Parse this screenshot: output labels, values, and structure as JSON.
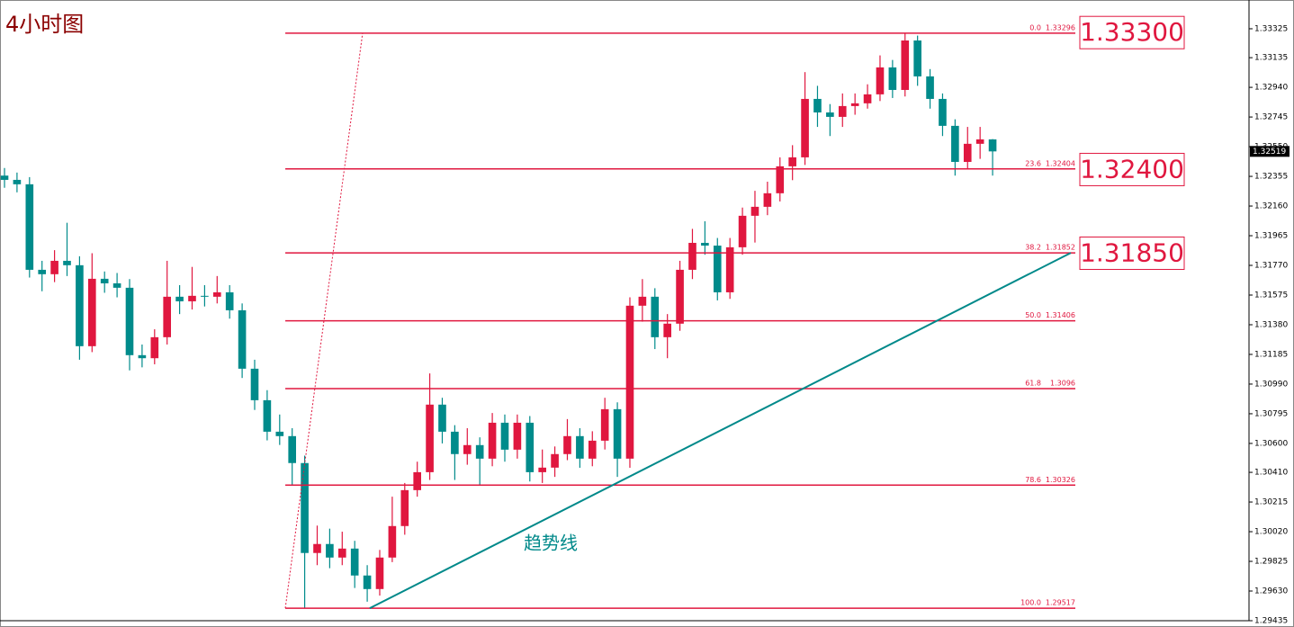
{
  "chart_data": {
    "type": "candlestick",
    "title": "4小时图",
    "xlim": [
      -0.36,
      99.5
    ],
    "ylim": [
      1.29435,
      1.33514
    ],
    "yticks": [
      1.33325,
      1.33135,
      {
        "value": 1.3294,
        "label": "1.32940"
      },
      1.32745,
      {
        "value": 1.3255,
        "label": "1.32550"
      },
      1.32355,
      {
        "value": 1.3216,
        "label": "1.32160"
      },
      1.31965,
      {
        "value": 1.3177,
        "label": "1.31770"
      },
      1.31575,
      {
        "value": 1.3138,
        "label": "1.31380"
      },
      1.31185,
      {
        "value": 1.3099,
        "label": "1.30990"
      },
      1.30795,
      {
        "value": 1.306,
        "label": "1.30600"
      },
      {
        "value": 1.3041,
        "label": "1.30410"
      },
      1.30215,
      {
        "value": 1.3002,
        "label": "1.30020"
      },
      1.29825,
      {
        "value": 1.2963,
        "label": "1.29630"
      },
      1.29435
    ],
    "up_color": "#e0173f",
    "down_color": "#008b8b",
    "open": [
      1.3236,
      1.32332,
      1.32303,
      1.31741,
      1.31712,
      1.318,
      1.31771,
      1.31239,
      1.31682,
      1.31652,
      1.31623,
      1.3118,
      1.3116,
      1.31298,
      1.31564,
      1.31534,
      1.3157,
      1.31564,
      1.31593,
      1.31475,
      1.31091,
      1.30884,
      1.30677,
      1.30648,
      1.30471,
      1.2988,
      1.29939,
      1.2985,
      1.29909,
      1.29732,
      1.29643,
      1.2985,
      1.30057,
      1.30293,
      1.30411,
      1.30855,
      1.30677,
      1.3053,
      1.30589,
      1.305,
      1.30736,
      1.30559,
      1.30736,
      1.30411,
      1.30441,
      1.3053,
      1.30648,
      1.305,
      1.30618,
      1.30825,
      1.305,
      1.31505,
      1.31564,
      1.31298,
      1.31387,
      1.31741,
      1.31918,
      1.319,
      1.31593,
      1.31889,
      1.32096,
      1.32155,
      1.32244,
      1.32421,
      1.3248,
      1.32864,
      1.32775,
      1.32746,
      1.32817,
      1.32835,
      1.32894,
      1.33071,
      1.32923,
      1.33248,
      1.33012,
      1.32864,
      1.32687,
      1.3245,
      1.32569,
      1.32598
    ],
    "high": [
      1.3241,
      1.3238,
      1.3235,
      1.318,
      1.3187,
      1.3205,
      1.3183,
      1.3185,
      1.3173,
      1.3172,
      1.3168,
      1.3125,
      1.3135,
      1.318,
      1.3164,
      1.3176,
      1.3164,
      1.317,
      1.3164,
      1.3152,
      1.3115,
      1.3095,
      1.3079,
      1.307,
      1.3052,
      1.3006,
      1.3004,
      1.3002,
      1.2996,
      1.298,
      1.299,
      1.3025,
      1.3034,
      1.3048,
      1.3106,
      1.309,
      1.3072,
      1.307,
      1.3064,
      1.308,
      1.3079,
      1.3079,
      1.3078,
      1.3056,
      1.3058,
      1.3076,
      1.307,
      1.3068,
      1.309,
      1.3087,
      1.3156,
      1.3168,
      1.3162,
      1.3145,
      1.318,
      1.3201,
      1.3206,
      1.3195,
      1.3195,
      1.3215,
      1.3226,
      1.3232,
      1.3248,
      1.3256,
      1.3304,
      1.3295,
      1.3283,
      1.329,
      1.329,
      1.3296,
      1.3315,
      1.3312,
      1.33296,
      1.3328,
      1.3306,
      1.329,
      1.3273,
      1.3268,
      1.3268,
      1.326
    ],
    "low": [
      1.3228,
      1.3225,
      1.3169,
      1.316,
      1.3166,
      1.317,
      1.3115,
      1.312,
      1.3159,
      1.3156,
      1.3108,
      1.311,
      1.3112,
      1.3125,
      1.3145,
      1.3148,
      1.315,
      1.3152,
      1.3142,
      1.3103,
      1.3082,
      1.3062,
      1.3059,
      1.3033,
      1.29517,
      1.298,
      1.2978,
      1.298,
      1.2965,
      1.2956,
      1.296,
      1.2982,
      1.3,
      1.3025,
      1.3036,
      1.306,
      1.3036,
      1.3046,
      1.3033,
      1.3045,
      1.3048,
      1.305,
      1.3035,
      1.3034,
      1.3038,
      1.3049,
      1.3044,
      1.3045,
      1.3056,
      1.3038,
      1.3044,
      1.314,
      1.3122,
      1.3116,
      1.3134,
      1.3168,
      1.3184,
      1.3154,
      1.3155,
      1.3184,
      1.3192,
      1.321,
      1.3219,
      1.3233,
      1.3243,
      1.3268,
      1.3262,
      1.3268,
      1.3276,
      1.328,
      1.3285,
      1.3287,
      1.3288,
      1.3295,
      1.328,
      1.3262,
      1.3236,
      1.324,
      1.3247,
      1.3236
    ],
    "close": [
      1.32332,
      1.32303,
      1.31741,
      1.31712,
      1.318,
      1.31771,
      1.31239,
      1.31682,
      1.31652,
      1.31623,
      1.3118,
      1.3116,
      1.31298,
      1.31564,
      1.31534,
      1.3157,
      1.31564,
      1.31593,
      1.31475,
      1.31091,
      1.30884,
      1.30677,
      1.30648,
      1.30471,
      1.2988,
      1.29939,
      1.2985,
      1.29909,
      1.29732,
      1.29643,
      1.2985,
      1.30057,
      1.30293,
      1.30411,
      1.30855,
      1.30677,
      1.3053,
      1.30589,
      1.305,
      1.30736,
      1.30559,
      1.30736,
      1.30411,
      1.30441,
      1.3053,
      1.30648,
      1.305,
      1.30618,
      1.30825,
      1.305,
      1.31505,
      1.31564,
      1.31298,
      1.31387,
      1.31741,
      1.31918,
      1.319,
      1.31593,
      1.31889,
      1.32096,
      1.32155,
      1.32244,
      1.32421,
      1.3248,
      1.32864,
      1.32775,
      1.32746,
      1.32817,
      1.32835,
      1.32894,
      1.33071,
      1.32923,
      1.33248,
      1.33012,
      1.32864,
      1.32687,
      1.3245,
      1.32569,
      1.32598,
      1.32519
    ],
    "current_price": 1.32519,
    "fib_color": "#e0173f",
    "fib_anchor": {
      "x": [
        22.45,
        28.63
      ],
      "values": [
        1.29517,
        1.33296
      ]
    },
    "fib_levels": [
      {
        "label": "0.0",
        "value": 1.33296
      },
      {
        "label": "23.6",
        "value": 1.32404
      },
      {
        "label": "38.2",
        "value": 1.31852
      },
      {
        "label": "50.0",
        "value": 1.31406
      },
      {
        "label": "61.8",
        "value": 1.3096
      },
      {
        "label": "78.6",
        "value": 1.30326
      },
      {
        "label": "100.0",
        "value": 1.29517
      }
    ],
    "price_boxes": [
      {
        "value": 1.333,
        "label": "1.33300"
      },
      {
        "value": 1.324,
        "label": "1.32400"
      },
      {
        "value": 1.3185,
        "label": "1.31850"
      }
    ],
    "trendline": {
      "label": "趋势线",
      "color": "#00898a",
      "x": [
        29.2,
        85.25
      ],
      "values": [
        1.29517,
        1.31852
      ]
    }
  }
}
